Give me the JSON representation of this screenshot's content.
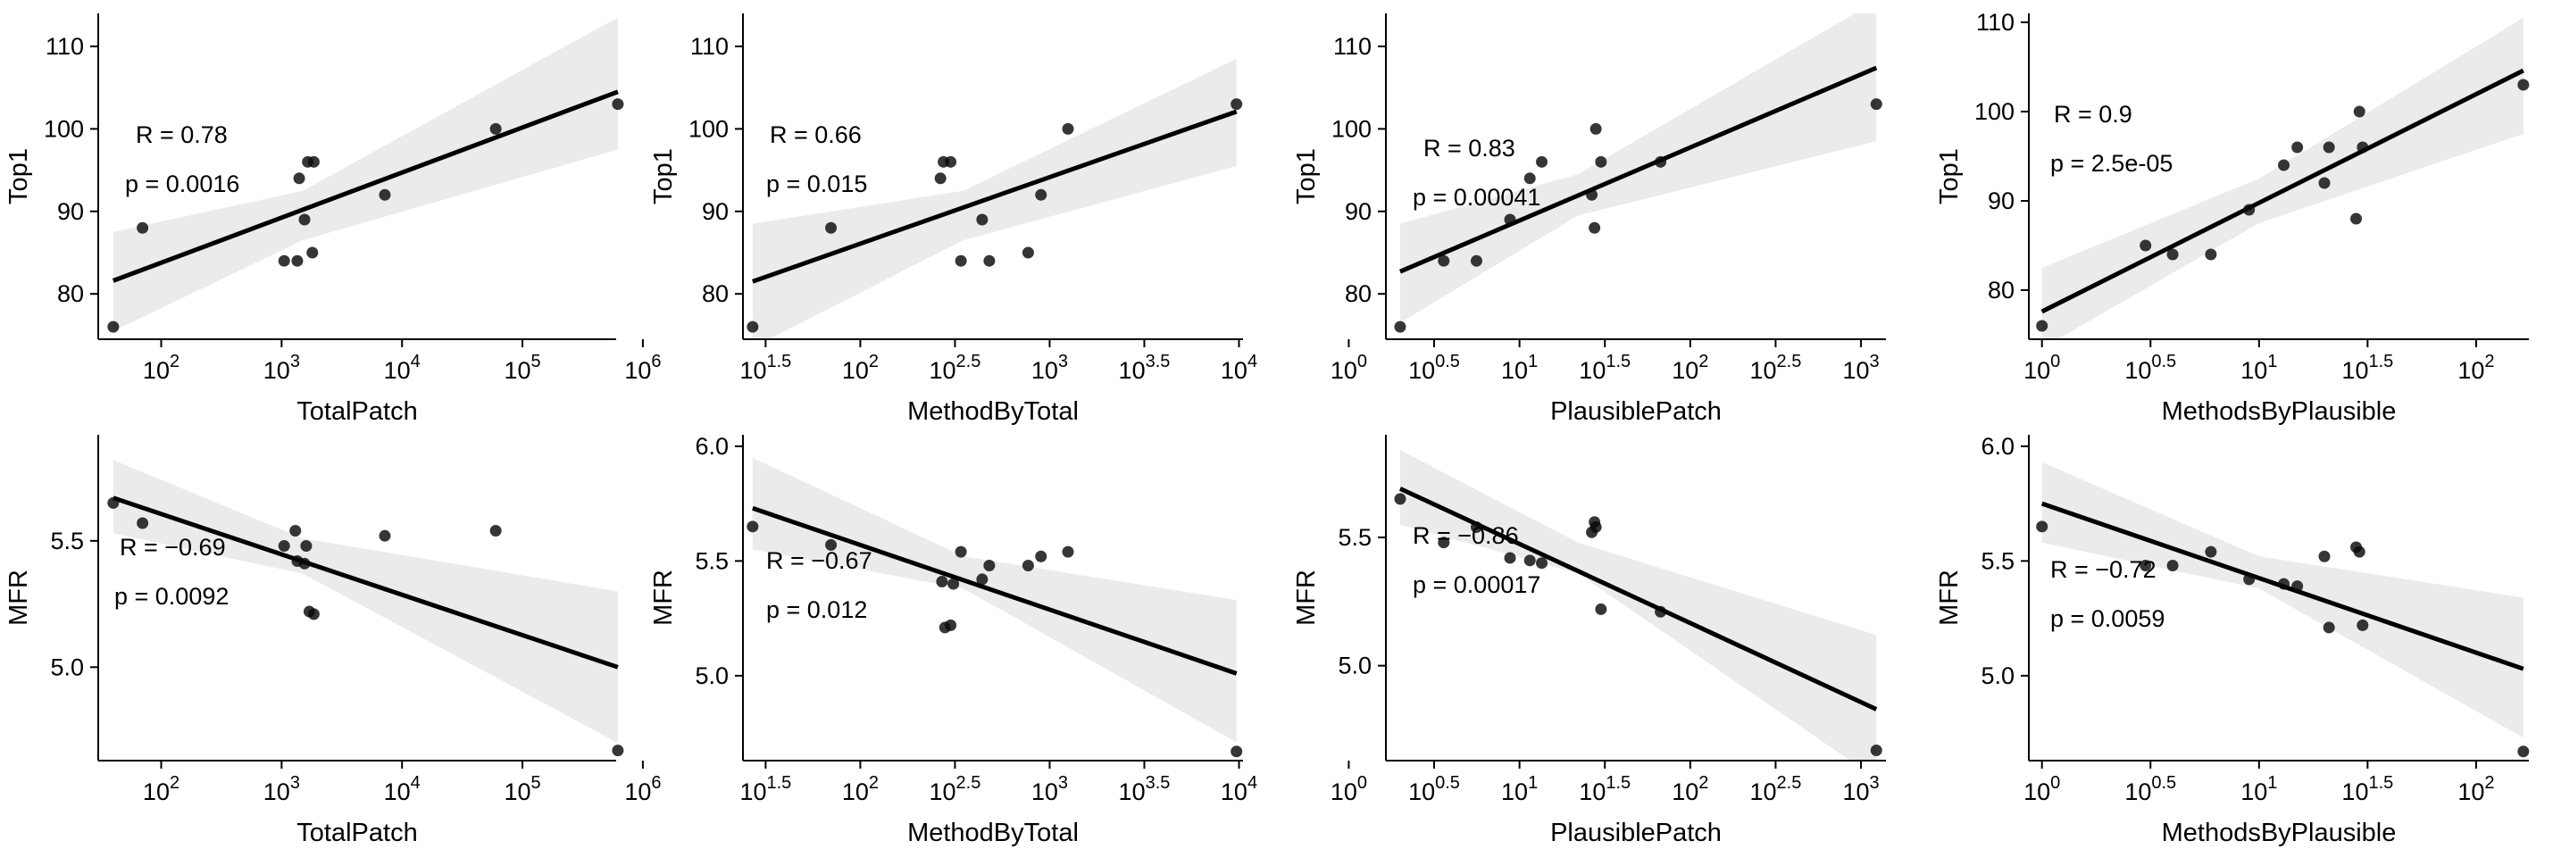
{
  "chart_data": [
    {
      "type": "scatter",
      "x_log": true,
      "xlabel": "TotalPatch",
      "ylabel": "Top1",
      "xlim": [
        30,
        600000
      ],
      "ylim": [
        74.5,
        114
      ],
      "xticks": [
        100,
        1000,
        10000,
        100000,
        1000000
      ],
      "xtick_labels": [
        [
          "10",
          "2"
        ],
        [
          "10",
          "3"
        ],
        [
          "10",
          "4"
        ],
        [
          "10",
          "5"
        ],
        [
          "10",
          "6"
        ]
      ],
      "yticks": [
        80,
        90,
        100,
        110
      ],
      "ytick_labels": [
        "80",
        "90",
        "100",
        "110"
      ],
      "annotations": [
        "R = 0.78",
        "p = 0.0016"
      ],
      "points": [
        {
          "x": 40,
          "y": 76
        },
        {
          "x": 70,
          "y": 88
        },
        {
          "x": 1050,
          "y": 84
        },
        {
          "x": 1350,
          "y": 84
        },
        {
          "x": 1400,
          "y": 94
        },
        {
          "x": 1550,
          "y": 89
        },
        {
          "x": 1650,
          "y": 96
        },
        {
          "x": 1800,
          "y": 85
        },
        {
          "x": 1850,
          "y": 96
        },
        {
          "x": 7200,
          "y": 92
        },
        {
          "x": 60000,
          "y": 100
        },
        {
          "x": 620000,
          "y": 103
        }
      ],
      "fit": {
        "x": [
          40,
          620000
        ],
        "y": [
          81.6,
          104.5
        ]
      },
      "band": {
        "x": [
          40,
          1500,
          620000
        ],
        "lower": [
          75.5,
          86.5,
          97.5
        ],
        "upper": [
          87.5,
          92.5,
          113.5
        ]
      }
    },
    {
      "type": "scatter",
      "x_log": true,
      "xlabel": "MethodByTotal",
      "ylabel": "Top1",
      "xlim": [
        24,
        10500
      ],
      "ylim": [
        74.5,
        114
      ],
      "xticks": [
        31.62,
        100,
        316.2,
        1000,
        3162,
        10000
      ],
      "xtick_labels": [
        [
          "10",
          "1.5"
        ],
        [
          "10",
          "2"
        ],
        [
          "10",
          "2.5"
        ],
        [
          "10",
          "3"
        ],
        [
          "10",
          "3.5"
        ],
        [
          "10",
          "4"
        ]
      ],
      "yticks": [
        80,
        90,
        100,
        110
      ],
      "ytick_labels": [
        "80",
        "90",
        "100",
        "110"
      ],
      "annotations": [
        "R = 0.66",
        "p = 0.015"
      ],
      "points": [
        {
          "x": 27,
          "y": 76
        },
        {
          "x": 70,
          "y": 88
        },
        {
          "x": 265,
          "y": 94
        },
        {
          "x": 275,
          "y": 96
        },
        {
          "x": 300,
          "y": 96
        },
        {
          "x": 340,
          "y": 84
        },
        {
          "x": 440,
          "y": 89
        },
        {
          "x": 480,
          "y": 84
        },
        {
          "x": 770,
          "y": 85
        },
        {
          "x": 900,
          "y": 92
        },
        {
          "x": 1250,
          "y": 100
        },
        {
          "x": 9700,
          "y": 103
        }
      ],
      "fit": {
        "x": [
          27,
          9700
        ],
        "y": [
          81.5,
          102.1
        ]
      },
      "band": {
        "x": [
          27,
          350,
          9700
        ],
        "lower": [
          73.5,
          86.5,
          95.5
        ],
        "upper": [
          88.5,
          92.5,
          108.5
        ]
      }
    },
    {
      "type": "scatter",
      "x_log": true,
      "xlabel": "PlausiblePatch",
      "ylabel": "Top1",
      "xlim": [
        1.65,
        1400
      ],
      "ylim": [
        74.5,
        114
      ],
      "xticks": [
        1,
        3.162,
        10,
        31.62,
        100,
        316.2,
        1000
      ],
      "xtick_labels": [
        [
          "10",
          "0"
        ],
        [
          "10",
          "0.5"
        ],
        [
          "10",
          "1"
        ],
        [
          "10",
          "1.5"
        ],
        [
          "10",
          "2"
        ],
        [
          "10",
          "2.5"
        ],
        [
          "10",
          "3"
        ]
      ],
      "yticks": [
        80,
        90,
        100,
        110
      ],
      "ytick_labels": [
        "80",
        "90",
        "100",
        "110"
      ],
      "annotations": [
        "R = 0.83",
        "p = 0.00041"
      ],
      "points": [
        {
          "x": 2,
          "y": 76
        },
        {
          "x": 3.6,
          "y": 84
        },
        {
          "x": 5.6,
          "y": 84
        },
        {
          "x": 8.8,
          "y": 89
        },
        {
          "x": 11.5,
          "y": 94
        },
        {
          "x": 13.5,
          "y": 96
        },
        {
          "x": 26.5,
          "y": 92
        },
        {
          "x": 27.5,
          "y": 88
        },
        {
          "x": 28,
          "y": 100
        },
        {
          "x": 30,
          "y": 96
        },
        {
          "x": 67,
          "y": 96
        },
        {
          "x": 1230,
          "y": 103
        }
      ],
      "fit": {
        "x": [
          2,
          1230
        ],
        "y": [
          82.7,
          107.4
        ]
      },
      "band": {
        "x": [
          2,
          22,
          1230
        ],
        "lower": [
          76.5,
          89.5,
          98.5
        ],
        "upper": [
          88.5,
          94.5,
          115.5
        ]
      }
    },
    {
      "type": "scatter",
      "x_log": true,
      "xlabel": "MethodsByPlausible",
      "ylabel": "Top1",
      "xlim": [
        0.87,
        175
      ],
      "ylim": [
        74.5,
        111
      ],
      "xticks": [
        1,
        3.162,
        10,
        31.62,
        100
      ],
      "xtick_labels": [
        [
          "10",
          "0"
        ],
        [
          "10",
          "0.5"
        ],
        [
          "10",
          "1"
        ],
        [
          "10",
          "1.5"
        ],
        [
          "10",
          "2"
        ]
      ],
      "yticks": [
        80,
        90,
        100,
        110
      ],
      "ytick_labels": [
        "80",
        "90",
        "100",
        "110"
      ],
      "annotations": [
        "R = 0.9",
        "p = 2.5e-05"
      ],
      "points": [
        {
          "x": 1,
          "y": 76
        },
        {
          "x": 3,
          "y": 85
        },
        {
          "x": 4,
          "y": 84
        },
        {
          "x": 6,
          "y": 84
        },
        {
          "x": 9,
          "y": 89
        },
        {
          "x": 13,
          "y": 94
        },
        {
          "x": 15,
          "y": 96
        },
        {
          "x": 20,
          "y": 92
        },
        {
          "x": 21,
          "y": 96
        },
        {
          "x": 28,
          "y": 88
        },
        {
          "x": 29,
          "y": 100
        },
        {
          "x": 30,
          "y": 96
        },
        {
          "x": 165,
          "y": 103
        }
      ],
      "fit": {
        "x": [
          1,
          165
        ],
        "y": [
          77.6,
          104.6
        ]
      },
      "band": {
        "x": [
          1,
          10,
          165
        ],
        "lower": [
          73.5,
          87.5,
          97.5
        ],
        "upper": [
          82.5,
          92.5,
          110.5
        ]
      }
    },
    {
      "type": "scatter",
      "x_log": true,
      "xlabel": "TotalPatch",
      "ylabel": "MFR",
      "xlim": [
        30,
        600000
      ],
      "ylim": [
        4.63,
        5.92
      ],
      "xticks": [
        100,
        1000,
        10000,
        100000,
        1000000
      ],
      "xtick_labels": [
        [
          "10",
          "2"
        ],
        [
          "10",
          "3"
        ],
        [
          "10",
          "4"
        ],
        [
          "10",
          "5"
        ],
        [
          "10",
          "6"
        ]
      ],
      "yticks": [
        5.0,
        5.5
      ],
      "ytick_labels": [
        "5.0",
        "5.5"
      ],
      "annotations": [
        "R = −0.69",
        "p = 0.0092"
      ],
      "points": [
        {
          "x": 40,
          "y": 5.65
        },
        {
          "x": 70,
          "y": 5.57
        },
        {
          "x": 1050,
          "y": 5.48
        },
        {
          "x": 1300,
          "y": 5.54
        },
        {
          "x": 1350,
          "y": 5.42
        },
        {
          "x": 1550,
          "y": 5.41
        },
        {
          "x": 1600,
          "y": 5.48
        },
        {
          "x": 1700,
          "y": 5.22
        },
        {
          "x": 1850,
          "y": 5.21
        },
        {
          "x": 7200,
          "y": 5.52
        },
        {
          "x": 60000,
          "y": 5.54
        },
        {
          "x": 620000,
          "y": 4.67
        }
      ],
      "fit": {
        "x": [
          40,
          620000
        ],
        "y": [
          5.67,
          5.0
        ]
      },
      "band": {
        "x": [
          40,
          1500,
          620000
        ],
        "lower": [
          5.53,
          5.37,
          4.7
        ],
        "upper": [
          5.82,
          5.51,
          5.3
        ]
      }
    },
    {
      "type": "scatter",
      "x_log": true,
      "xlabel": "MethodByTotal",
      "ylabel": "MFR",
      "xlim": [
        24,
        10500
      ],
      "ylim": [
        4.63,
        6.05
      ],
      "xticks": [
        31.62,
        100,
        316.2,
        1000,
        3162,
        10000
      ],
      "xtick_labels": [
        [
          "10",
          "1.5"
        ],
        [
          "10",
          "2"
        ],
        [
          "10",
          "2.5"
        ],
        [
          "10",
          "3"
        ],
        [
          "10",
          "3.5"
        ],
        [
          "10",
          "4"
        ]
      ],
      "yticks": [
        5.0,
        5.5,
        6.0
      ],
      "ytick_labels": [
        "5.0",
        "5.5",
        "6.0"
      ],
      "annotations": [
        "R = −0.67",
        "p = 0.012"
      ],
      "points": [
        {
          "x": 27,
          "y": 5.65
        },
        {
          "x": 70,
          "y": 5.57
        },
        {
          "x": 270,
          "y": 5.41
        },
        {
          "x": 280,
          "y": 5.21
        },
        {
          "x": 300,
          "y": 5.22
        },
        {
          "x": 310,
          "y": 5.4
        },
        {
          "x": 340,
          "y": 5.54
        },
        {
          "x": 440,
          "y": 5.42
        },
        {
          "x": 480,
          "y": 5.48
        },
        {
          "x": 770,
          "y": 5.48
        },
        {
          "x": 900,
          "y": 5.52
        },
        {
          "x": 1250,
          "y": 5.54
        },
        {
          "x": 9700,
          "y": 4.67
        }
      ],
      "fit": {
        "x": [
          27,
          9700
        ],
        "y": [
          5.73,
          5.01
        ]
      },
      "band": {
        "x": [
          27,
          350,
          9700
        ],
        "lower": [
          5.55,
          5.38,
          4.71
        ],
        "upper": [
          5.95,
          5.52,
          5.33
        ]
      }
    },
    {
      "type": "scatter",
      "x_log": true,
      "xlabel": "PlausiblePatch",
      "ylabel": "MFR",
      "xlim": [
        1.65,
        1400
      ],
      "ylim": [
        4.63,
        5.9
      ],
      "xticks": [
        1,
        3.162,
        10,
        31.62,
        100,
        316.2,
        1000
      ],
      "xtick_labels": [
        [
          "10",
          "0"
        ],
        [
          "10",
          "0.5"
        ],
        [
          "10",
          "1"
        ],
        [
          "10",
          "1.5"
        ],
        [
          "10",
          "2"
        ],
        [
          "10",
          "2.5"
        ],
        [
          "10",
          "3"
        ]
      ],
      "yticks": [
        5.0,
        5.5
      ],
      "ytick_labels": [
        "5.0",
        "5.5"
      ],
      "annotations": [
        "R = −0.86",
        "p = 0.00017"
      ],
      "points": [
        {
          "x": 2,
          "y": 5.65
        },
        {
          "x": 3.6,
          "y": 5.48
        },
        {
          "x": 5.6,
          "y": 5.54
        },
        {
          "x": 8.8,
          "y": 5.42
        },
        {
          "x": 11.5,
          "y": 5.41
        },
        {
          "x": 13.5,
          "y": 5.4
        },
        {
          "x": 26.5,
          "y": 5.52
        },
        {
          "x": 27.5,
          "y": 5.56
        },
        {
          "x": 28,
          "y": 5.54
        },
        {
          "x": 30,
          "y": 5.22
        },
        {
          "x": 67,
          "y": 5.21
        },
        {
          "x": 1230,
          "y": 4.67
        }
      ],
      "fit": {
        "x": [
          2,
          1230
        ],
        "y": [
          5.69,
          4.83
        ]
      },
      "band": {
        "x": [
          2,
          22,
          1230
        ],
        "lower": [
          5.55,
          5.36,
          4.56
        ],
        "upper": [
          5.84,
          5.48,
          5.12
        ]
      }
    },
    {
      "type": "scatter",
      "x_log": true,
      "xlabel": "MethodsByPlausible",
      "ylabel": "MFR",
      "xlim": [
        0.87,
        175
      ],
      "ylim": [
        4.63,
        6.05
      ],
      "xticks": [
        1,
        3.162,
        10,
        31.62,
        100
      ],
      "xtick_labels": [
        [
          "10",
          "0"
        ],
        [
          "10",
          "0.5"
        ],
        [
          "10",
          "1"
        ],
        [
          "10",
          "1.5"
        ],
        [
          "10",
          "2"
        ]
      ],
      "yticks": [
        5.0,
        5.5,
        6.0
      ],
      "ytick_labels": [
        "5.0",
        "5.5",
        "6.0"
      ],
      "annotations": [
        "R = −0.72",
        "p = 0.0059"
      ],
      "points": [
        {
          "x": 1,
          "y": 5.65
        },
        {
          "x": 3,
          "y": 5.48
        },
        {
          "x": 4,
          "y": 5.48
        },
        {
          "x": 6,
          "y": 5.54
        },
        {
          "x": 9,
          "y": 5.42
        },
        {
          "x": 13,
          "y": 5.4
        },
        {
          "x": 15,
          "y": 5.39
        },
        {
          "x": 20,
          "y": 5.52
        },
        {
          "x": 21,
          "y": 5.21
        },
        {
          "x": 28,
          "y": 5.56
        },
        {
          "x": 29,
          "y": 5.54
        },
        {
          "x": 30,
          "y": 5.22
        },
        {
          "x": 165,
          "y": 4.67
        }
      ],
      "fit": {
        "x": [
          1,
          165
        ],
        "y": [
          5.75,
          5.03
        ]
      },
      "band": {
        "x": [
          1,
          10,
          165
        ],
        "lower": [
          5.58,
          5.38,
          4.73
        ],
        "upper": [
          5.93,
          5.52,
          5.34
        ]
      }
    }
  ]
}
